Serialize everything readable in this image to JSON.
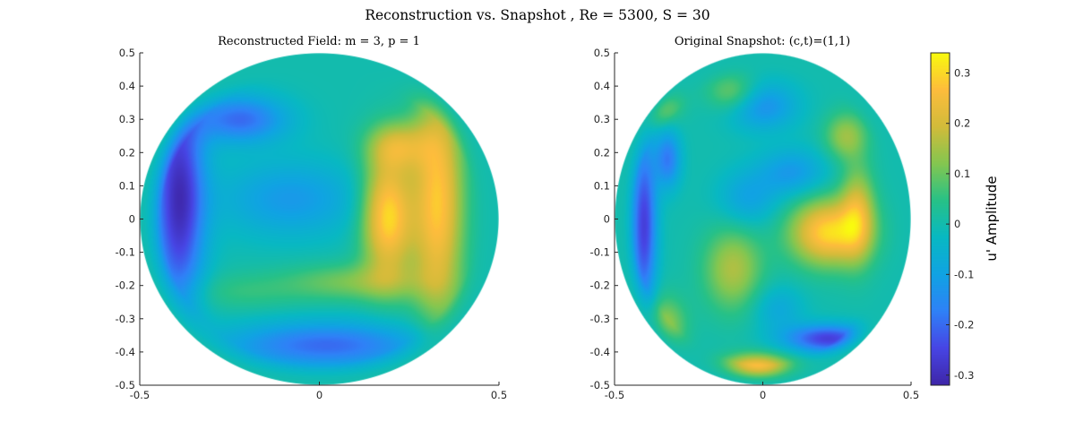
{
  "figure_title": "Reconstruction vs. Snapshot , Re = 5300, S = 30",
  "chart_data": [
    {
      "type": "heatmap",
      "panel": "left",
      "title": "Reconstructed Field: m = 3, p = 1",
      "xlim": [
        -0.5,
        0.5
      ],
      "ylim": [
        -0.5,
        0.5
      ],
      "xticks": [
        -0.5,
        0,
        0.5
      ],
      "xtick_labels": [
        "-0.5",
        "0",
        "0.5"
      ],
      "yticks": [
        0.5,
        0.4,
        0.3,
        0.2,
        0.1,
        0,
        -0.1,
        -0.2,
        -0.3,
        -0.4,
        -0.5
      ],
      "ytick_labels": [
        "0.5",
        "0.4",
        "0.3",
        "0.2",
        "0.1",
        "0",
        "-0.1",
        "-0.2",
        "-0.3",
        "-0.4",
        "-0.5"
      ],
      "domain": "circular disk, radius 0.5",
      "pattern": "positive crescent (yellow) on right, negative band (dark blue) on left and along bottom",
      "features": [
        {
          "x": 0.33,
          "y": 0.05,
          "sx": 0.05,
          "sy": 0.24,
          "amp": 0.28
        },
        {
          "x": 0.19,
          "y": 0.01,
          "sx": 0.05,
          "sy": 0.13,
          "amp": 0.31
        },
        {
          "x": 0.22,
          "y": 0.22,
          "sx": 0.06,
          "sy": 0.05,
          "amp": 0.16
        },
        {
          "x": 0.1,
          "y": -0.19,
          "sx": 0.14,
          "sy": 0.04,
          "amp": 0.11
        },
        {
          "x": -0.39,
          "y": 0.06,
          "sx": 0.05,
          "sy": 0.24,
          "amp": -0.3
        },
        {
          "x": -0.22,
          "y": 0.3,
          "sx": 0.09,
          "sy": 0.05,
          "amp": -0.2
        },
        {
          "x": 0.02,
          "y": -0.38,
          "sx": 0.2,
          "sy": 0.05,
          "amp": -0.2
        },
        {
          "x": -0.08,
          "y": 0.06,
          "sx": 0.14,
          "sy": 0.08,
          "amp": -0.12
        },
        {
          "x": -0.22,
          "y": -0.22,
          "sx": 0.12,
          "sy": 0.04,
          "amp": 0.05
        }
      ]
    },
    {
      "type": "heatmap",
      "panel": "right",
      "title": "Original Snapshot: (c,t)=(1,1)",
      "xlim": [
        -0.5,
        0.5
      ],
      "ylim": [
        -0.5,
        0.5
      ],
      "xticks": [
        -0.5,
        0,
        0.5
      ],
      "xtick_labels": [
        "-0.5",
        "0",
        "0.5"
      ],
      "yticks": [
        0.5,
        0.4,
        0.3,
        0.2,
        0.1,
        0,
        -0.1,
        -0.2,
        -0.3,
        -0.4,
        -0.5
      ],
      "ytick_labels": [
        "0.5",
        "0.4",
        "0.3",
        "0.2",
        "0.1",
        "0",
        "-0.1",
        "-0.2",
        "-0.3",
        "-0.4",
        "-0.5"
      ],
      "domain": "circular disk, radius 0.5",
      "pattern": "turbulent field, positive region center-right, negative streaks left and lower right",
      "features": [
        {
          "x": 0.22,
          "y": -0.04,
          "sx": 0.09,
          "sy": 0.07,
          "amp": 0.3
        },
        {
          "x": 0.32,
          "y": 0.02,
          "sx": 0.04,
          "sy": 0.1,
          "amp": 0.18
        },
        {
          "x": -0.1,
          "y": -0.15,
          "sx": 0.07,
          "sy": 0.09,
          "amp": 0.16
        },
        {
          "x": -0.02,
          "y": -0.45,
          "sx": 0.08,
          "sy": 0.03,
          "amp": 0.28
        },
        {
          "x": -0.33,
          "y": -0.32,
          "sx": 0.05,
          "sy": 0.06,
          "amp": 0.14
        },
        {
          "x": 0.28,
          "y": 0.25,
          "sx": 0.05,
          "sy": 0.05,
          "amp": 0.14
        },
        {
          "x": -0.36,
          "y": 0.35,
          "sx": 0.05,
          "sy": 0.04,
          "amp": 0.2
        },
        {
          "x": -0.1,
          "y": 0.38,
          "sx": 0.06,
          "sy": 0.04,
          "amp": 0.12
        },
        {
          "x": -0.4,
          "y": -0.02,
          "sx": 0.03,
          "sy": 0.18,
          "amp": -0.26
        },
        {
          "x": -0.32,
          "y": 0.18,
          "sx": 0.03,
          "sy": 0.06,
          "amp": -0.18
        },
        {
          "x": 0.22,
          "y": -0.36,
          "sx": 0.1,
          "sy": 0.03,
          "amp": -0.26
        },
        {
          "x": 0.0,
          "y": 0.34,
          "sx": 0.08,
          "sy": 0.05,
          "amp": -0.14
        },
        {
          "x": 0.1,
          "y": 0.14,
          "sx": 0.08,
          "sy": 0.05,
          "amp": -0.12
        },
        {
          "x": -0.05,
          "y": 0.06,
          "sx": 0.07,
          "sy": 0.06,
          "amp": -0.1
        },
        {
          "x": 0.05,
          "y": -0.27,
          "sx": 0.06,
          "sy": 0.05,
          "amp": -0.08
        }
      ]
    }
  ],
  "colorbar": {
    "label": "u' Amplitude",
    "clim": [
      -0.32,
      0.34
    ],
    "ticks": [
      0.3,
      0.2,
      0.1,
      0,
      -0.1,
      -0.2,
      -0.3
    ],
    "tick_labels": [
      "0.3",
      "0.2",
      "0.1",
      "0",
      "-0.1",
      "-0.2",
      "-0.3"
    ],
    "colormap": "parula",
    "colors": [
      "#3e26a8",
      "#4745e4",
      "#2f81f7",
      "#10a3e3",
      "#08b8c3",
      "#27c187",
      "#84c650",
      "#d2bb3a",
      "#fdbc3c",
      "#f9fb0e"
    ]
  }
}
